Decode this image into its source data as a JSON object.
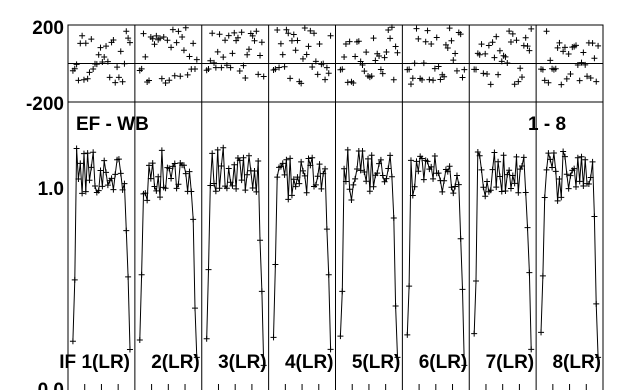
{
  "chart_data": {
    "type": "scatter",
    "title": "EF - WB",
    "subtitle": "1 - 8",
    "phase_panel": {
      "ylim": [
        -200,
        200
      ],
      "tick_labels": [
        "200",
        "-200"
      ],
      "marker": "+"
    },
    "amp_panel": {
      "ylim": [
        0.0,
        1.8
      ],
      "tick_labels": [
        "1.0",
        "0.0"
      ],
      "marker": "+",
      "line": true
    },
    "panels": [
      {
        "label": "IF 1(LR)",
        "phase_seed": 11,
        "amp_seed": 101
      },
      {
        "label": "2(LR)",
        "phase_seed": 22,
        "amp_seed": 202
      },
      {
        "label": "3(LR)",
        "phase_seed": 33,
        "amp_seed": 303
      },
      {
        "label": "4(LR)",
        "phase_seed": 44,
        "amp_seed": 404
      },
      {
        "label": "5(LR)",
        "phase_seed": 55,
        "amp_seed": 505
      },
      {
        "label": "6(LR)",
        "phase_seed": 66,
        "amp_seed": 606
      },
      {
        "label": "7(LR)",
        "phase_seed": 77,
        "amp_seed": 707
      },
      {
        "label": "8(LR)",
        "phase_seed": 88,
        "amp_seed": 808
      }
    ],
    "channels_per_panel": 32,
    "amp_profile": {
      "edge_low_left": 0.25,
      "edge_low_right": 0.15,
      "plateau_mean": 1.35,
      "plateau_scatter": 0.12
    },
    "phase_profile": {
      "mean": 40,
      "scatter": 150
    }
  }
}
